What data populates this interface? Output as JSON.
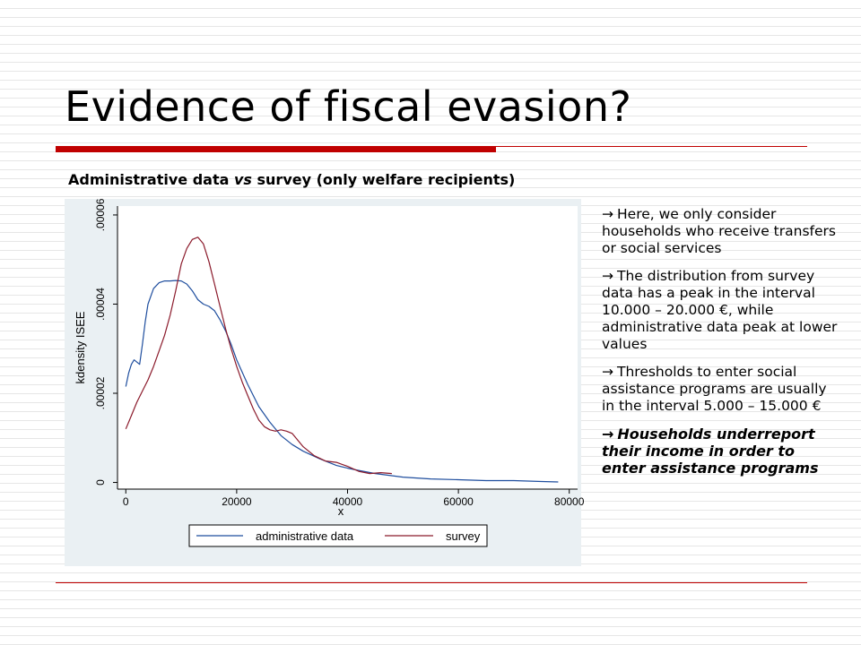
{
  "slide": {
    "title": "Evidence of fiscal evasion?",
    "subtitle_pre": "Administrative data ",
    "subtitle_em": "vs",
    "subtitle_post": " survey (only welfare recipients)",
    "colors": {
      "accent": "#c00000",
      "chart_bg": "#eaf0f3"
    }
  },
  "bullets": [
    {
      "arrow": "→",
      "text": "Here, we only consider households who receive transfers or social services"
    },
    {
      "arrow": "→",
      "text": "The distribution from survey data has a peak in the interval 10.000 – 20.000 €, while administrative data peak at lower values"
    },
    {
      "arrow": "→",
      "text": "Thresholds to enter social assistance programs are usually in the interval 5.000 – 15.000 €"
    },
    {
      "arrow": "→",
      "text": "Households underreport their income in order to enter assistance programs"
    }
  ],
  "chart_data": {
    "type": "line",
    "xlabel": "x",
    "ylabel": "kdensity ISEE",
    "xlim": [
      -1500,
      81500
    ],
    "ylim": [
      -1.5e-06,
      6.2e-05
    ],
    "xticks": [
      0,
      20000,
      40000,
      60000,
      80000
    ],
    "xtick_labels": [
      "0",
      "20000",
      "40000",
      "60000",
      "80000"
    ],
    "yticks": [
      0,
      2e-05,
      4e-05,
      6e-05
    ],
    "ytick_labels": [
      "0",
      ".00002",
      ".00004",
      ".00006"
    ],
    "legend": {
      "position": "bottom"
    },
    "series": [
      {
        "name": "administrative data",
        "color": "#1f4e9e",
        "x": [
          0,
          500,
          1000,
          1500,
          2000,
          2500,
          3000,
          3500,
          4000,
          5000,
          6000,
          7000,
          8000,
          9000,
          10000,
          11000,
          12000,
          13000,
          14000,
          15000,
          16000,
          17000,
          18000,
          19000,
          20000,
          22000,
          24000,
          26000,
          28000,
          30000,
          32000,
          35000,
          38000,
          40000,
          42000,
          45000,
          50000,
          55000,
          60000,
          65000,
          70000,
          75000,
          78000
        ],
        "y": [
          2.15e-05,
          2.45e-05,
          2.65e-05,
          2.75e-05,
          2.7e-05,
          2.65e-05,
          3.1e-05,
          3.6e-05,
          4e-05,
          4.35e-05,
          4.48e-05,
          4.52e-05,
          4.52e-05,
          4.53e-05,
          4.52e-05,
          4.45e-05,
          4.3e-05,
          4.1e-05,
          4e-05,
          3.95e-05,
          3.85e-05,
          3.65e-05,
          3.4e-05,
          3.1e-05,
          2.75e-05,
          2.2e-05,
          1.7e-05,
          1.35e-05,
          1.05e-05,
          8.5e-06,
          7e-06,
          5.3e-06,
          3.8e-06,
          3.2e-06,
          2.7e-06,
          2e-06,
          1.2e-06,
          8e-07,
          6e-07,
          4e-07,
          4e-07,
          2e-07,
          1e-07
        ]
      },
      {
        "name": "survey",
        "color": "#8b1a2b",
        "x": [
          0,
          1000,
          2000,
          3000,
          4000,
          5000,
          6000,
          7000,
          8000,
          9000,
          10000,
          11000,
          12000,
          13000,
          14000,
          15000,
          16000,
          17000,
          18000,
          19000,
          20000,
          21000,
          22000,
          23000,
          24000,
          25000,
          26000,
          27000,
          28000,
          29000,
          30000,
          32000,
          34000,
          36000,
          38000,
          40000,
          42000,
          44000,
          46000,
          48000
        ],
        "y": [
          1.2e-05,
          1.5e-05,
          1.8e-05,
          2.05e-05,
          2.3e-05,
          2.6e-05,
          2.95e-05,
          3.3e-05,
          3.75e-05,
          4.3e-05,
          4.9e-05,
          5.25e-05,
          5.45e-05,
          5.5e-05,
          5.35e-05,
          4.95e-05,
          4.45e-05,
          3.95e-05,
          3.45e-05,
          3e-05,
          2.6e-05,
          2.25e-05,
          1.95e-05,
          1.65e-05,
          1.4e-05,
          1.25e-05,
          1.18e-05,
          1.15e-05,
          1.18e-05,
          1.15e-05,
          1.1e-05,
          8e-06,
          6e-06,
          4.8e-06,
          4.5e-06,
          3.6e-06,
          2.5e-06,
          2e-06,
          2.2e-06,
          2e-06
        ]
      }
    ]
  }
}
